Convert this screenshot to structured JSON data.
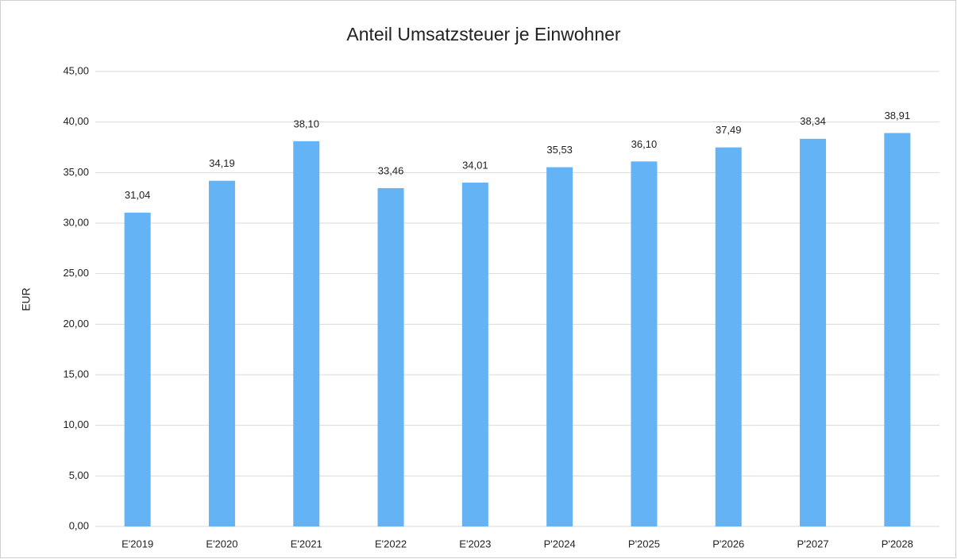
{
  "chart_data": {
    "type": "bar",
    "title": "Anteil Umsatzsteuer je Einwohner",
    "y_label": "EUR",
    "categories": [
      "E'2019",
      "E'2020",
      "E'2021",
      "E'2022",
      "E'2023",
      "P'2024",
      "P'2025",
      "P'2026",
      "P'2027",
      "P'2028"
    ],
    "values": [
      31.04,
      34.19,
      38.1,
      33.46,
      34.01,
      35.53,
      36.1,
      37.49,
      38.34,
      38.91
    ],
    "value_labels": [
      "31,04",
      "34,19",
      "38,10",
      "33,46",
      "34,01",
      "35,53",
      "36,10",
      "37,49",
      "38,34",
      "38,91"
    ],
    "color": "#63b3f5",
    "ylim": [
      0,
      45
    ],
    "yticks": [
      {
        "value": 0,
        "label": "0,00"
      },
      {
        "value": 5,
        "label": "5,00"
      },
      {
        "value": 10,
        "label": "10,00"
      },
      {
        "value": 15,
        "label": "15,00"
      },
      {
        "value": 20,
        "label": "20,00"
      },
      {
        "value": 25,
        "label": "25,00"
      },
      {
        "value": 30,
        "label": "30,00"
      },
      {
        "value": 35,
        "label": "35,00"
      },
      {
        "value": 40,
        "label": "40,00"
      },
      {
        "value": 45,
        "label": "45,00"
      }
    ],
    "grid": true
  }
}
